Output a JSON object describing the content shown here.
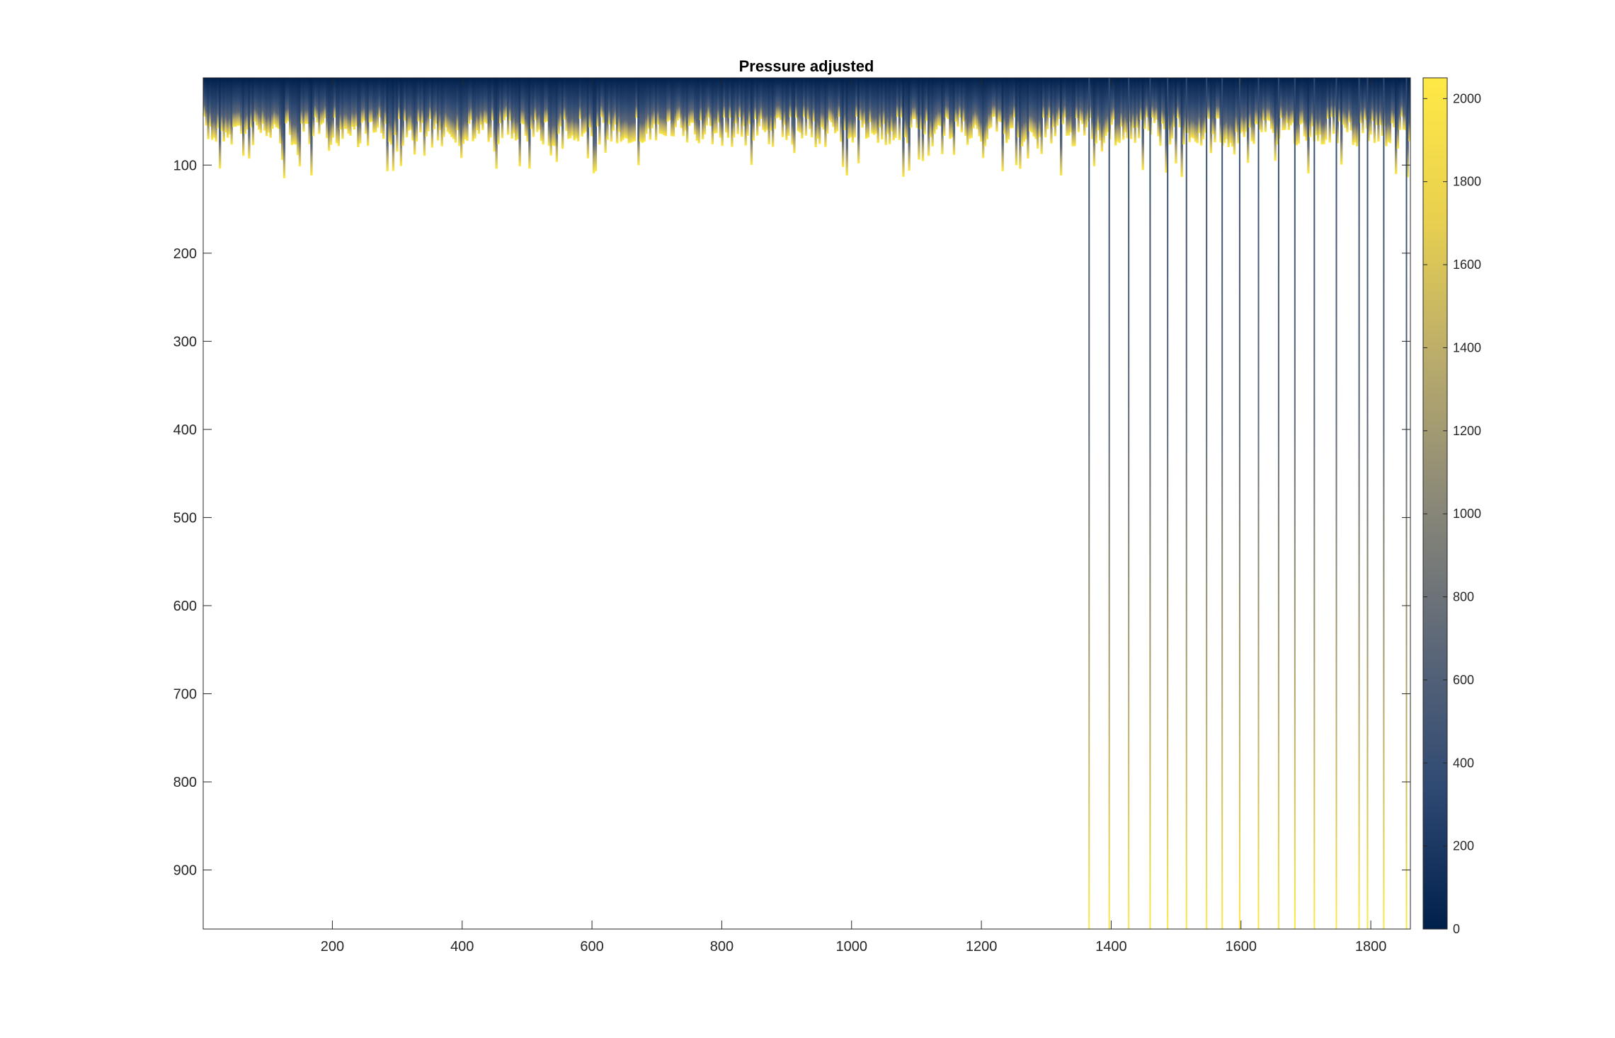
{
  "chart_data": {
    "type": "heatmap",
    "title": "Pressure adjusted",
    "colormap": "cividis",
    "colormap_stops": [
      "#00204C",
      "#2F4A73",
      "#5C6778",
      "#8A8878",
      "#B9AB6C",
      "#E8D04F",
      "#FFE945"
    ],
    "xlim": [
      1,
      1861
    ],
    "ylim": [
      1,
      967
    ],
    "y_reversed": true,
    "clim": [
      0,
      2050
    ],
    "x_ticks": [
      200,
      400,
      600,
      800,
      1000,
      1200,
      1400,
      1600,
      1800
    ],
    "y_ticks": [
      100,
      200,
      300,
      400,
      500,
      600,
      700,
      800,
      900
    ],
    "colorbar": {
      "location": "right",
      "ticks": [
        0,
        200,
        400,
        600,
        800,
        1000,
        1200,
        1400,
        1600,
        1800,
        2000
      ]
    },
    "filled_band": {
      "x_range": [
        1,
        1861
      ],
      "typical_fill_depth": [
        45,
        80
      ],
      "max_fill_depth": 115
    },
    "deep_profiles": {
      "x": [
        1366,
        1397,
        1427,
        1460,
        1487,
        1516,
        1547,
        1571,
        1598,
        1627,
        1658,
        1683,
        1713,
        1747,
        1782,
        1795,
        1820,
        1855
      ],
      "depth": 967
    },
    "grid": false
  }
}
